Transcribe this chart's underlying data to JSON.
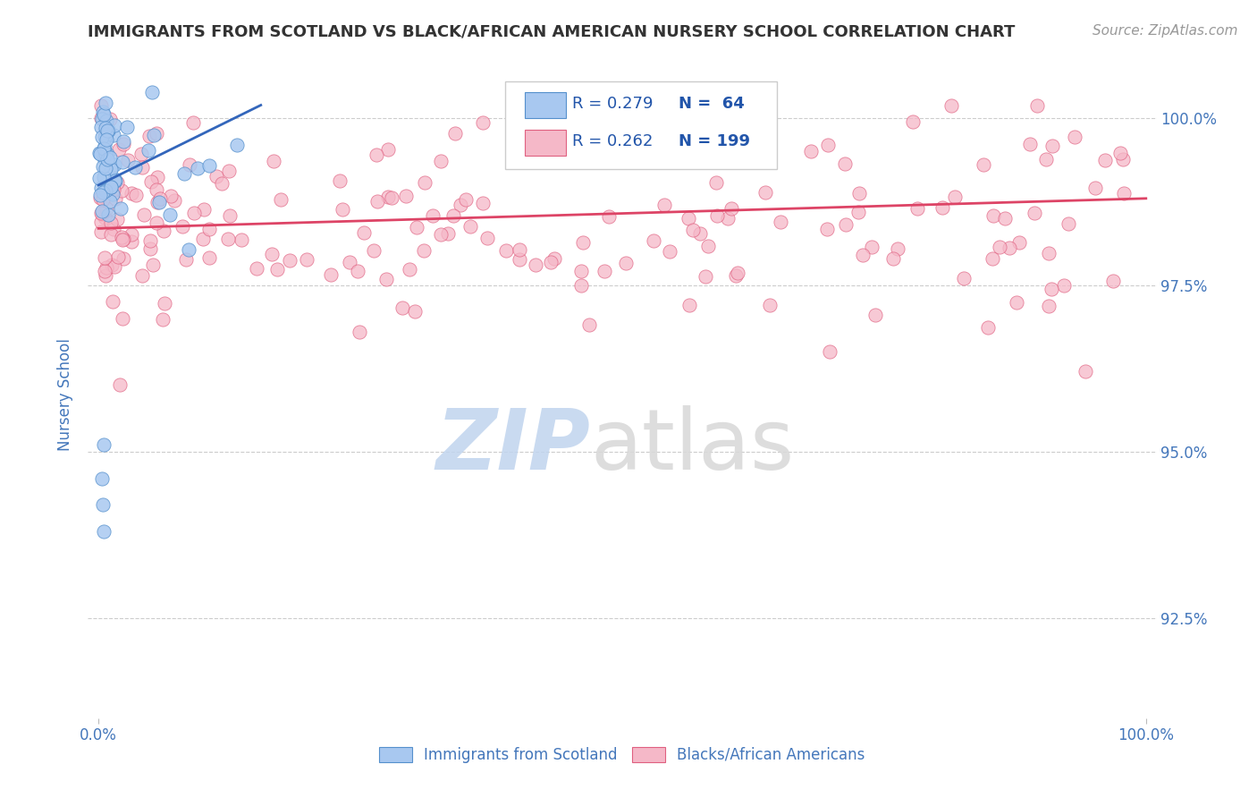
{
  "title": "IMMIGRANTS FROM SCOTLAND VS BLACK/AFRICAN AMERICAN NURSERY SCHOOL CORRELATION CHART",
  "source": "Source: ZipAtlas.com",
  "ylabel": "Nursery School",
  "legend_label_blue": "Immigrants from Scotland",
  "legend_label_pink": "Blacks/African Americans",
  "blue_color": "#a8c8f0",
  "pink_color": "#f5b8c8",
  "blue_edge_color": "#5590cc",
  "pink_edge_color": "#e06080",
  "blue_line_color": "#3366bb",
  "pink_line_color": "#dd4466",
  "title_color": "#333333",
  "source_color": "#999999",
  "axis_label_color": "#4477bb",
  "legend_text_color": "#2255aa",
  "ytick_labels": [
    "92.5%",
    "95.0%",
    "97.5%",
    "100.0%"
  ],
  "ytick_values": [
    0.925,
    0.95,
    0.975,
    1.0
  ],
  "xlim": [
    -0.01,
    1.01
  ],
  "ylim": [
    0.91,
    1.007
  ]
}
